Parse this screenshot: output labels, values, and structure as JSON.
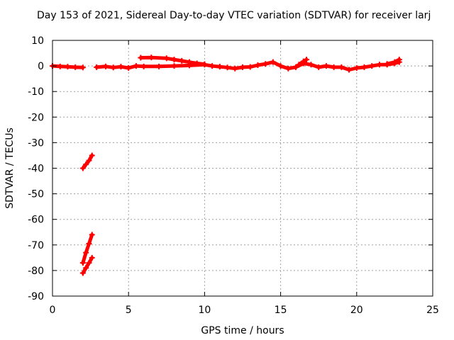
{
  "chart_data": {
    "type": "scatter",
    "title": "Day 153 of 2021, Sidereal Day-to-day VTEC variation (SDTVAR) for receiver larj",
    "xlabel": "GPS time / hours",
    "ylabel": "SDTVAR / TECUs",
    "xlim": [
      0,
      25
    ],
    "ylim": [
      -90,
      10
    ],
    "xticks": [
      0,
      5,
      10,
      15,
      20,
      25
    ],
    "yticks": [
      10,
      0,
      -10,
      -20,
      -30,
      -40,
      -50,
      -60,
      -70,
      -80,
      -90
    ],
    "grid": true,
    "marker": "plus",
    "series": [
      {
        "color": "#ff0000",
        "segments": [
          [
            [
              0.0,
              0.0
            ],
            [
              0.5,
              -0.2
            ],
            [
              1.0,
              -0.3
            ],
            [
              1.5,
              -0.5
            ],
            [
              2.0,
              -0.6
            ]
          ],
          [
            [
              2.9,
              -0.5
            ],
            [
              3.5,
              -0.2
            ],
            [
              4.0,
              -0.6
            ],
            [
              4.5,
              -0.3
            ],
            [
              5.0,
              -0.8
            ],
            [
              5.5,
              0.0
            ],
            [
              6.0,
              -0.2
            ],
            [
              7.0,
              -0.2
            ],
            [
              8.0,
              0.0
            ],
            [
              9.0,
              0.2
            ],
            [
              10.0,
              0.5
            ],
            [
              10.5,
              0.0
            ],
            [
              11.0,
              -0.3
            ],
            [
              11.5,
              -0.6
            ],
            [
              12.0,
              -1.0
            ],
            [
              12.5,
              -0.5
            ],
            [
              13.0,
              -0.4
            ],
            [
              13.5,
              0.3
            ],
            [
              14.0,
              0.8
            ],
            [
              14.5,
              1.5
            ],
            [
              15.0,
              0.0
            ],
            [
              15.5,
              -1.0
            ],
            [
              16.0,
              -0.5
            ],
            [
              16.5,
              1.0
            ],
            [
              17.0,
              0.5
            ],
            [
              17.5,
              -0.5
            ],
            [
              18.0,
              0.0
            ],
            [
              18.5,
              -0.5
            ],
            [
              19.0,
              -0.5
            ],
            [
              19.5,
              -1.5
            ],
            [
              20.0,
              -0.8
            ],
            [
              20.5,
              -0.5
            ],
            [
              21.0,
              0.0
            ],
            [
              21.5,
              0.5
            ],
            [
              22.0,
              0.5
            ],
            [
              22.5,
              1.0
            ],
            [
              22.8,
              1.5
            ]
          ],
          [
            [
              5.8,
              3.2
            ],
            [
              6.5,
              3.3
            ],
            [
              7.5,
              3.0
            ],
            [
              8.0,
              2.5
            ],
            [
              8.5,
              2.0
            ],
            [
              9.0,
              1.5
            ],
            [
              9.5,
              1.0
            ],
            [
              10.0,
              0.7
            ]
          ],
          [
            [
              16.2,
              0.5
            ],
            [
              16.5,
              1.8
            ],
            [
              16.7,
              2.5
            ]
          ],
          [
            [
              22.0,
              0.8
            ],
            [
              22.5,
              1.5
            ],
            [
              22.8,
              2.5
            ]
          ],
          [
            [
              2.0,
              -40.0
            ],
            [
              2.2,
              -38.5
            ],
            [
              2.4,
              -37.0
            ],
            [
              2.6,
              -35.0
            ]
          ],
          [
            [
              2.0,
              -77.0
            ],
            [
              2.2,
              -73.0
            ],
            [
              2.4,
              -69.5
            ],
            [
              2.6,
              -66.0
            ]
          ],
          [
            [
              2.0,
              -81.0
            ],
            [
              2.2,
              -79.0
            ],
            [
              2.4,
              -77.0
            ],
            [
              2.6,
              -75.0
            ]
          ]
        ]
      }
    ]
  }
}
